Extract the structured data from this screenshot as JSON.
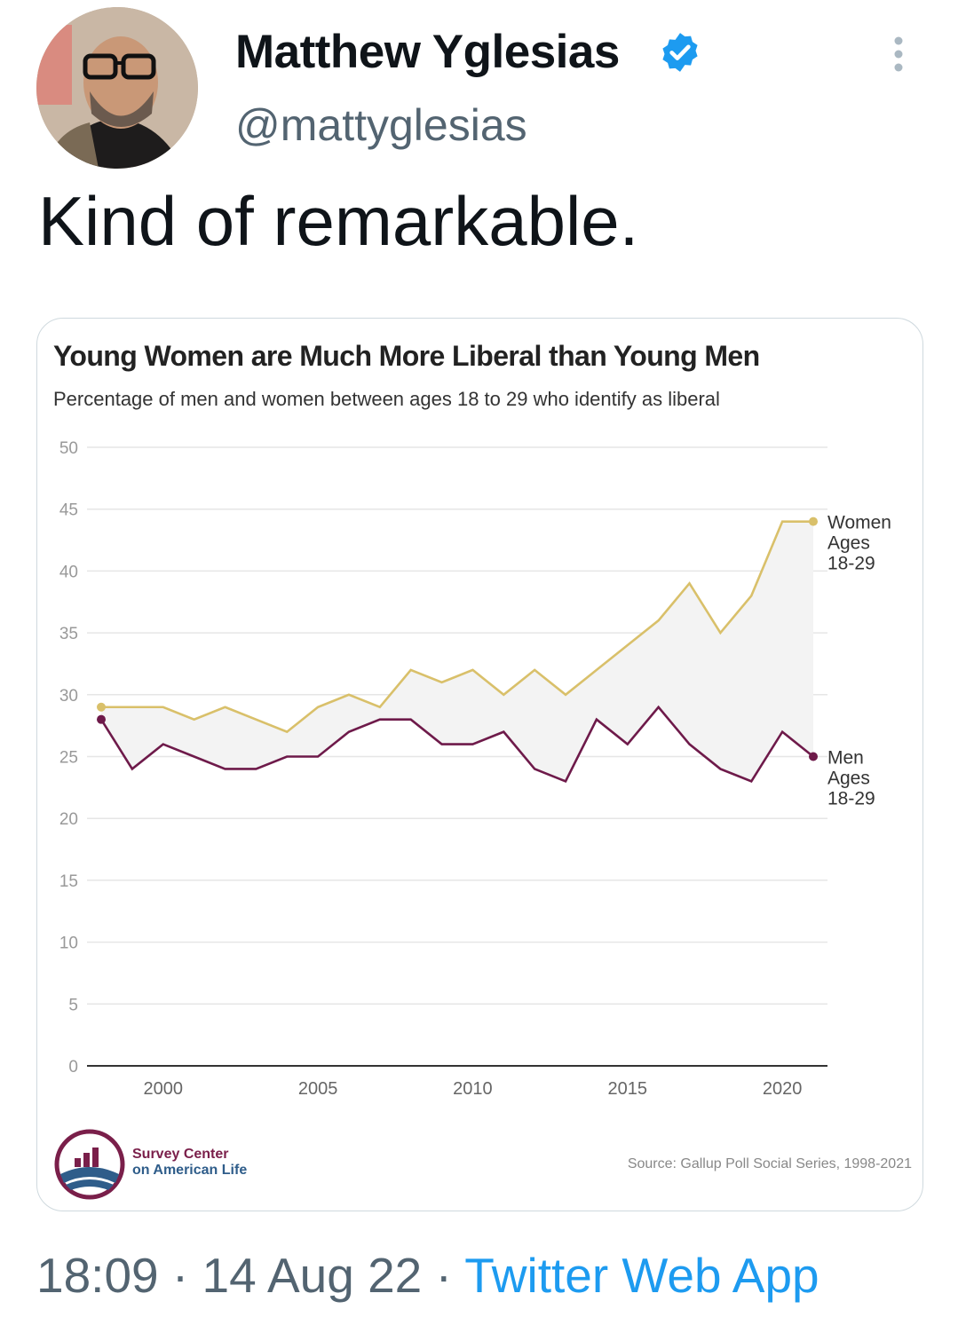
{
  "tweet": {
    "author_name": "Matthew Yglesias",
    "handle": "@mattyglesias",
    "text": "Kind of remarkable.",
    "time": "18:09",
    "date": "14 Aug 22",
    "separator": "·",
    "source_app": "Twitter Web App",
    "verified_color": "#1d9bf0"
  },
  "chart_data": {
    "type": "line",
    "title": "Young Women are Much More Liberal than Young Men",
    "subtitle": "Percentage of men and women between ages 18 to 29 who identify as liberal",
    "x": [
      1998,
      1999,
      2000,
      2001,
      2002,
      2003,
      2004,
      2005,
      2006,
      2007,
      2008,
      2009,
      2010,
      2011,
      2012,
      2013,
      2014,
      2015,
      2016,
      2017,
      2018,
      2019,
      2020,
      2021
    ],
    "xticks": [
      "2000",
      "2005",
      "2010",
      "2015",
      "2020"
    ],
    "xtick_values": [
      2000,
      2005,
      2010,
      2015,
      2020
    ],
    "yticks": [
      "0",
      "5",
      "10",
      "15",
      "20",
      "25",
      "30",
      "35",
      "40",
      "45",
      "50"
    ],
    "ylim": [
      0,
      50
    ],
    "xlim": [
      1998,
      2021
    ],
    "grid": true,
    "gap_shaded": true,
    "series": [
      {
        "name": "Women Ages 18-29",
        "label_lines": [
          "Women",
          "Ages",
          "18-29"
        ],
        "color": "#d9c06a",
        "values": [
          29,
          29,
          29,
          28,
          29,
          28,
          27,
          29,
          30,
          29,
          32,
          31,
          32,
          30,
          32,
          30,
          32,
          34,
          36,
          39,
          35,
          38,
          44,
          44
        ]
      },
      {
        "name": "Men Ages 18-29",
        "label_lines": [
          "Men",
          "Ages",
          "18-29"
        ],
        "color": "#6e1a4a",
        "values": [
          28,
          24,
          26,
          25,
          24,
          24,
          25,
          25,
          27,
          28,
          28,
          26,
          26,
          27,
          24,
          23,
          28,
          26,
          29,
          26,
          24,
          23,
          27,
          25
        ]
      }
    ],
    "source": "Source: Gallup Poll Social Series, 1998-2021",
    "logo_lines": [
      "Survey Center",
      "on American Life"
    ]
  }
}
